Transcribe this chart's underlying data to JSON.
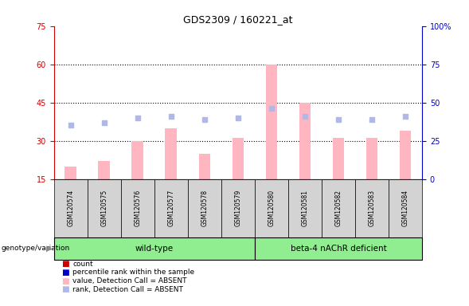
{
  "title": "GDS2309 / 160221_at",
  "samples": [
    "GSM120574",
    "GSM120575",
    "GSM120576",
    "GSM120577",
    "GSM120578",
    "GSM120579",
    "GSM120580",
    "GSM120581",
    "GSM120582",
    "GSM120583",
    "GSM120584"
  ],
  "bar_values_absent": [
    20,
    22,
    30,
    35,
    25,
    31,
    60,
    45,
    31,
    31,
    34
  ],
  "rank_absent": [
    35,
    37,
    40,
    41,
    39,
    40,
    46,
    41,
    39,
    39,
    41
  ],
  "ylim_left": [
    15,
    75
  ],
  "ylim_right": [
    0,
    100
  ],
  "yticks_left": [
    15,
    30,
    45,
    60,
    75
  ],
  "yticks_right": [
    0,
    25,
    50,
    75,
    100
  ],
  "bar_color_absent": "#FFB6C1",
  "rank_color_absent": "#B0B8E8",
  "left_axis_color": "#CC0000",
  "right_axis_color": "#0000CC",
  "sample_bg_color": "#D3D3D3",
  "wildtype_bg": "#90EE90",
  "mutant_bg": "#90EE90",
  "wildtype_label": "wild-type",
  "mutant_label": "beta-4 nAChR deficient",
  "genotype_label": "genotype/variation",
  "n_wildtype": 6,
  "n_mutant": 5,
  "legend_items": [
    {
      "label": "count",
      "color": "#CC0000"
    },
    {
      "label": "percentile rank within the sample",
      "color": "#0000CC"
    },
    {
      "label": "value, Detection Call = ABSENT",
      "color": "#FFB6C1"
    },
    {
      "label": "rank, Detection Call = ABSENT",
      "color": "#B0B8E8"
    }
  ]
}
